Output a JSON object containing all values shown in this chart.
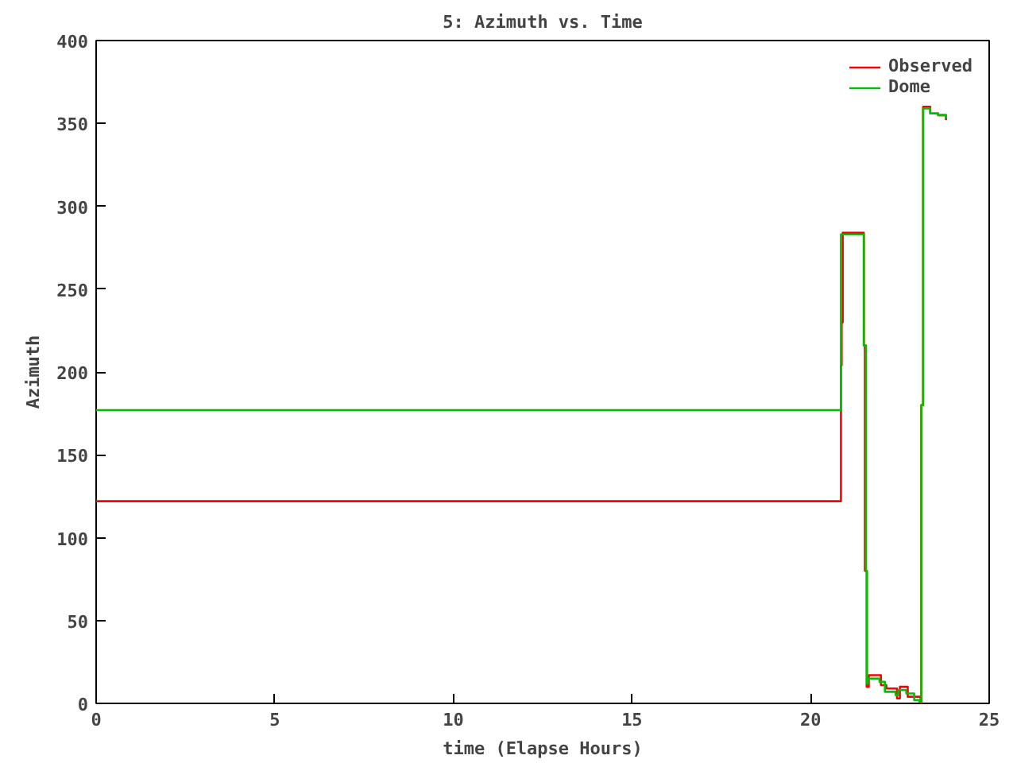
{
  "chart_data": {
    "type": "step",
    "title": "5: Azimuth vs. Time",
    "xlabel": "time (Elapse Hours)",
    "ylabel": "Azimuth",
    "xlim": [
      0,
      25
    ],
    "xticks": [
      0,
      5,
      10,
      15,
      20,
      25
    ],
    "ylim": [
      0,
      400
    ],
    "yticks": [
      0,
      50,
      100,
      150,
      200,
      250,
      300,
      350,
      400
    ],
    "grid": false,
    "legend": "top right",
    "marker": "none",
    "line_style": "solid",
    "series": [
      {
        "name": "Observed",
        "color": "#ff0000",
        "x": [
          0,
          20.85,
          20.87,
          20.9,
          21.49,
          21.52,
          21.57,
          21.63,
          21.97,
          22.12,
          22.42,
          22.5,
          22.72,
          22.94,
          23.08,
          23.1,
          23.15,
          23.35,
          23.57,
          23.79
        ],
        "values": [
          122,
          204,
          230,
          284,
          216,
          80,
          10,
          17,
          11,
          9,
          3,
          10,
          4,
          4,
          0,
          180,
          360,
          356,
          355,
          352
        ]
      },
      {
        "name": "Dome",
        "color": "#00c000",
        "x": [
          0,
          20.85,
          21.49,
          21.55,
          21.58,
          21.61,
          21.93,
          22.08,
          22.38,
          22.46,
          22.68,
          22.9,
          23.05,
          23.1,
          23.15,
          23.35,
          23.57,
          23.79
        ],
        "values": [
          177,
          283,
          216,
          80,
          12,
          15,
          13,
          7,
          5,
          8,
          6,
          2,
          1,
          180,
          359,
          356,
          355,
          353
        ]
      }
    ]
  }
}
